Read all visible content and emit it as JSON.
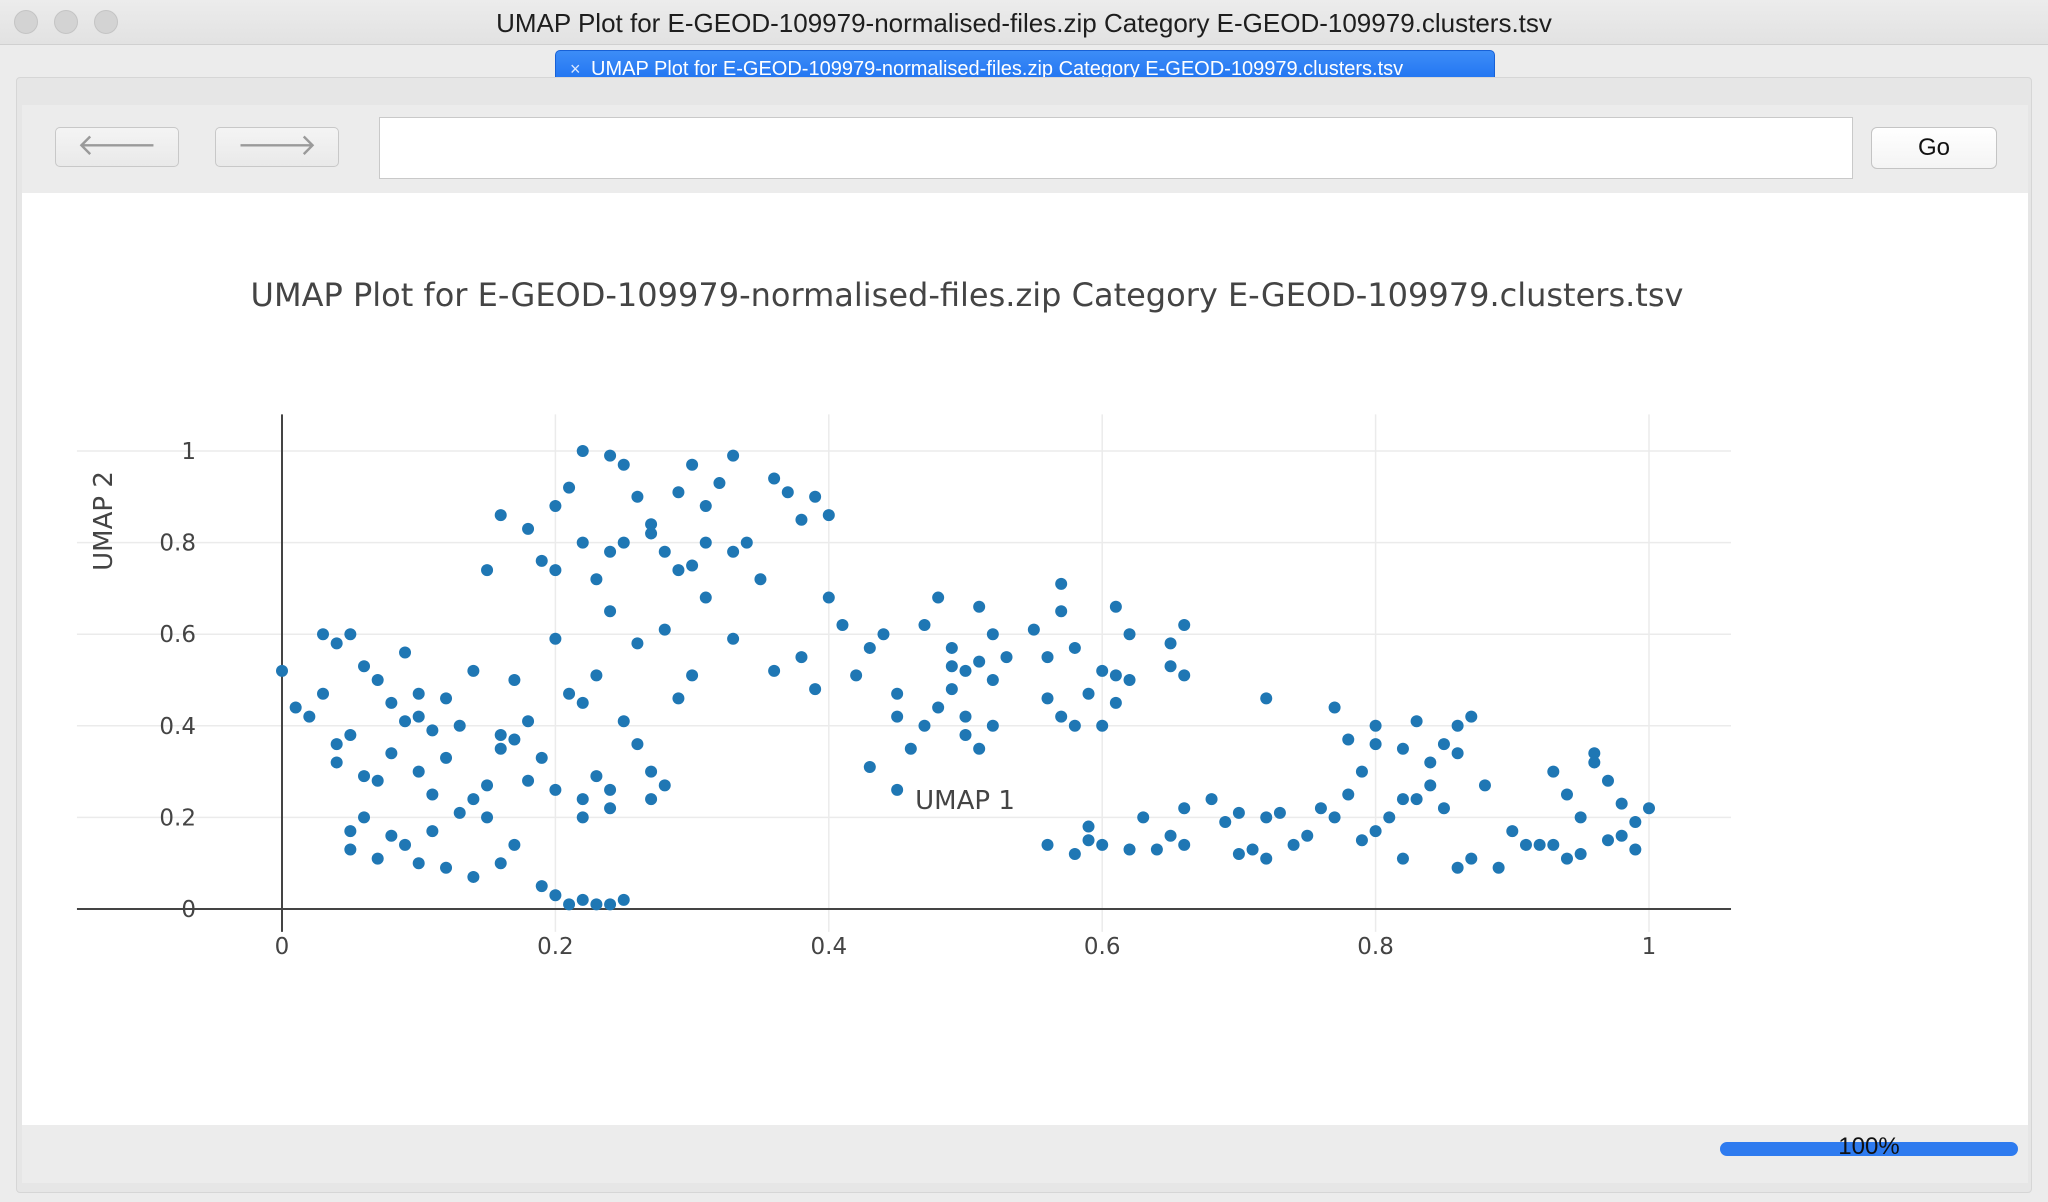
{
  "window": {
    "title": "UMAP Plot for E-GEOD-109979-normalised-files.zip Category E-GEOD-109979.clusters.tsv"
  },
  "tab": {
    "close_glyph": "×",
    "label": "UMAP Plot for E-GEOD-109979-normalised-files.zip Category E-GEOD-109979.clusters.tsv"
  },
  "toolbar": {
    "back_icon": "arrow-left-icon",
    "forward_icon": "arrow-right-icon",
    "back_glyph": "🡐",
    "forward_glyph": "🡒",
    "url_value": "",
    "go_label": "Go"
  },
  "status": {
    "progress_percent": 100,
    "progress_label": "100%"
  },
  "colors": {
    "accent": "#1f77b4",
    "tab": "#1a6ef0"
  },
  "chart_data": {
    "type": "scatter",
    "title": "UMAP Plot for E-GEOD-109979-normalised-files.zip Category E-GEOD-109979.clusters.tsv",
    "xlabel": "UMAP 1",
    "ylabel": "UMAP 2",
    "xlim": [
      -0.15,
      1.06
    ],
    "ylim": [
      -0.05,
      1.08
    ],
    "x_ticks": [
      "0",
      "0.2",
      "0.4",
      "0.6",
      "0.8",
      "1"
    ],
    "y_ticks": [
      "0",
      "0.2",
      "0.4",
      "0.6",
      "0.8",
      "1"
    ],
    "grid": true,
    "legend": "none",
    "color": "#1f77b4",
    "points": [
      [
        0,
        0.52
      ],
      [
        0.01,
        0.44
      ],
      [
        0.02,
        0.42
      ],
      [
        0.03,
        0.47
      ],
      [
        0.04,
        0.58
      ],
      [
        0.05,
        0.6
      ],
      [
        0.06,
        0.53
      ],
      [
        0.04,
        0.36
      ],
      [
        0.05,
        0.38
      ],
      [
        0.04,
        0.32
      ],
      [
        0.07,
        0.5
      ],
      [
        0.08,
        0.45
      ],
      [
        0.06,
        0.29
      ],
      [
        0.07,
        0.28
      ],
      [
        0.08,
        0.34
      ],
      [
        0.09,
        0.41
      ],
      [
        0.1,
        0.42
      ],
      [
        0.1,
        0.47
      ],
      [
        0.11,
        0.39
      ],
      [
        0.12,
        0.46
      ],
      [
        0.12,
        0.33
      ],
      [
        0.13,
        0.21
      ],
      [
        0.14,
        0.24
      ],
      [
        0.11,
        0.25
      ],
      [
        0.15,
        0.27
      ],
      [
        0.16,
        0.35
      ],
      [
        0.17,
        0.37
      ],
      [
        0.18,
        0.41
      ],
      [
        0.2,
        0.26
      ],
      [
        0.05,
        0.17
      ],
      [
        0.05,
        0.13
      ],
      [
        0.06,
        0.2
      ],
      [
        0.08,
        0.16
      ],
      [
        0.09,
        0.14
      ],
      [
        0.1,
        0.1
      ],
      [
        0.12,
        0.09
      ],
      [
        0.14,
        0.07
      ],
      [
        0.16,
        0.1
      ],
      [
        0.17,
        0.14
      ],
      [
        0.18,
        0.28
      ],
      [
        0.11,
        0.17
      ],
      [
        0.15,
        0.2
      ],
      [
        0.16,
        0.38
      ],
      [
        0.19,
        0.05
      ],
      [
        0.2,
        0.03
      ],
      [
        0.21,
        0.01
      ],
      [
        0.22,
        0.02
      ],
      [
        0.23,
        0.01
      ],
      [
        0.24,
        0.01
      ],
      [
        0.25,
        0.02
      ],
      [
        0.22,
        0.24
      ],
      [
        0.23,
        0.29
      ],
      [
        0.24,
        0.26
      ],
      [
        0.25,
        0.41
      ],
      [
        0.26,
        0.36
      ],
      [
        0.27,
        0.3
      ],
      [
        0.28,
        0.27
      ],
      [
        0.29,
        0.46
      ],
      [
        0.27,
        0.24
      ],
      [
        0.24,
        0.22
      ],
      [
        0.22,
        0.2
      ],
      [
        0.21,
        0.47
      ],
      [
        0.23,
        0.51
      ],
      [
        0.15,
        0.74
      ],
      [
        0.16,
        0.86
      ],
      [
        0.18,
        0.83
      ],
      [
        0.19,
        0.76
      ],
      [
        0.2,
        0.88
      ],
      [
        0.21,
        0.92
      ],
      [
        0.22,
        0.8
      ],
      [
        0.23,
        0.72
      ],
      [
        0.24,
        0.78
      ],
      [
        0.2,
        0.74
      ],
      [
        0.22,
        1
      ],
      [
        0.24,
        0.99
      ],
      [
        0.25,
        0.97
      ],
      [
        0.26,
        0.9
      ],
      [
        0.27,
        0.82
      ],
      [
        0.28,
        0.78
      ],
      [
        0.29,
        0.91
      ],
      [
        0.3,
        0.97
      ],
      [
        0.31,
        0.88
      ],
      [
        0.32,
        0.93
      ],
      [
        0.33,
        0.99
      ],
      [
        0.34,
        0.8
      ],
      [
        0.36,
        0.94
      ],
      [
        0.37,
        0.91
      ],
      [
        0.38,
        0.85
      ],
      [
        0.39,
        0.9
      ],
      [
        0.4,
        0.86
      ],
      [
        0.3,
        0.75
      ],
      [
        0.29,
        0.74
      ],
      [
        0.27,
        0.84
      ],
      [
        0.25,
        0.8
      ],
      [
        0.31,
        0.8
      ],
      [
        0.33,
        0.78
      ],
      [
        0.24,
        0.65
      ],
      [
        0.28,
        0.61
      ],
      [
        0.3,
        0.51
      ],
      [
        0.33,
        0.59
      ],
      [
        0.36,
        0.52
      ],
      [
        0.38,
        0.55
      ],
      [
        0.39,
        0.48
      ],
      [
        0.4,
        0.68
      ],
      [
        0.41,
        0.62
      ],
      [
        0.42,
        0.51
      ],
      [
        0.43,
        0.57
      ],
      [
        0.44,
        0.6
      ],
      [
        0.45,
        0.47
      ],
      [
        0.45,
        0.42
      ],
      [
        0.46,
        0.35
      ],
      [
        0.43,
        0.31
      ],
      [
        0.45,
        0.26
      ],
      [
        0.47,
        0.62
      ],
      [
        0.48,
        0.68
      ],
      [
        0.49,
        0.57
      ],
      [
        0.5,
        0.52
      ],
      [
        0.51,
        0.66
      ],
      [
        0.52,
        0.6
      ],
      [
        0.49,
        0.48
      ],
      [
        0.48,
        0.44
      ],
      [
        0.5,
        0.38
      ],
      [
        0.51,
        0.35
      ],
      [
        0.52,
        0.4
      ],
      [
        0.53,
        0.55
      ],
      [
        0.5,
        0.42
      ],
      [
        0.47,
        0.4
      ],
      [
        0.49,
        0.53
      ],
      [
        0.51,
        0.54
      ],
      [
        0.52,
        0.5
      ],
      [
        0.56,
        0.55
      ],
      [
        0.57,
        0.65
      ],
      [
        0.57,
        0.71
      ],
      [
        0.58,
        0.57
      ],
      [
        0.59,
        0.47
      ],
      [
        0.6,
        0.52
      ],
      [
        0.61,
        0.66
      ],
      [
        0.62,
        0.6
      ],
      [
        0.62,
        0.5
      ],
      [
        0.56,
        0.46
      ],
      [
        0.57,
        0.42
      ],
      [
        0.58,
        0.4
      ],
      [
        0.6,
        0.4
      ],
      [
        0.61,
        0.45
      ],
      [
        0.65,
        0.58
      ],
      [
        0.66,
        0.62
      ],
      [
        0.66,
        0.51
      ],
      [
        0.65,
        0.53
      ],
      [
        0.61,
        0.51
      ],
      [
        0.55,
        0.61
      ],
      [
        0.56,
        0.14
      ],
      [
        0.58,
        0.12
      ],
      [
        0.59,
        0.15
      ],
      [
        0.6,
        0.14
      ],
      [
        0.62,
        0.13
      ],
      [
        0.64,
        0.13
      ],
      [
        0.65,
        0.16
      ],
      [
        0.66,
        0.14
      ],
      [
        0.66,
        0.22
      ],
      [
        0.68,
        0.24
      ],
      [
        0.69,
        0.19
      ],
      [
        0.7,
        0.21
      ],
      [
        0.7,
        0.12
      ],
      [
        0.71,
        0.13
      ],
      [
        0.72,
        0.11
      ],
      [
        0.72,
        0.2
      ],
      [
        0.73,
        0.21
      ],
      [
        0.74,
        0.14
      ],
      [
        0.75,
        0.16
      ],
      [
        0.76,
        0.22
      ],
      [
        0.77,
        0.2
      ],
      [
        0.78,
        0.25
      ],
      [
        0.79,
        0.3
      ],
      [
        0.8,
        0.36
      ],
      [
        0.79,
        0.15
      ],
      [
        0.8,
        0.17
      ],
      [
        0.82,
        0.11
      ],
      [
        0.83,
        0.24
      ],
      [
        0.84,
        0.27
      ],
      [
        0.85,
        0.22
      ],
      [
        0.86,
        0.34
      ],
      [
        0.86,
        0.4
      ],
      [
        0.87,
        0.42
      ],
      [
        0.88,
        0.27
      ],
      [
        0.86,
        0.09
      ],
      [
        0.87,
        0.11
      ],
      [
        0.89,
        0.09
      ],
      [
        0.9,
        0.17
      ],
      [
        0.91,
        0.14
      ],
      [
        0.92,
        0.14
      ],
      [
        0.93,
        0.3
      ],
      [
        0.94,
        0.11
      ],
      [
        0.95,
        0.12
      ],
      [
        0.95,
        0.2
      ],
      [
        0.96,
        0.32
      ],
      [
        0.97,
        0.28
      ],
      [
        0.98,
        0.23
      ],
      [
        0.99,
        0.19
      ],
      [
        1,
        0.22
      ],
      [
        0.98,
        0.16
      ],
      [
        0.72,
        0.46
      ],
      [
        0.77,
        0.44
      ],
      [
        0.78,
        0.37
      ],
      [
        0.8,
        0.4
      ],
      [
        0.82,
        0.35
      ],
      [
        0.83,
        0.41
      ],
      [
        0.84,
        0.32
      ],
      [
        0.85,
        0.36
      ],
      [
        0.81,
        0.2
      ],
      [
        0.82,
        0.24
      ],
      [
        0.96,
        0.34
      ],
      [
        0.94,
        0.25
      ],
      [
        0.93,
        0.14
      ],
      [
        0.99,
        0.13
      ],
      [
        0.97,
        0.15
      ],
      [
        0.63,
        0.2
      ],
      [
        0.59,
        0.18
      ],
      [
        0.09,
        0.56
      ],
      [
        0.03,
        0.6
      ],
      [
        0.17,
        0.5
      ],
      [
        0.14,
        0.52
      ],
      [
        0.1,
        0.3
      ],
      [
        0.07,
        0.11
      ],
      [
        0.13,
        0.4
      ],
      [
        0.19,
        0.33
      ],
      [
        0.2,
        0.59
      ],
      [
        0.26,
        0.58
      ],
      [
        0.22,
        0.45
      ],
      [
        0.31,
        0.68
      ],
      [
        0.35,
        0.72
      ]
    ]
  }
}
